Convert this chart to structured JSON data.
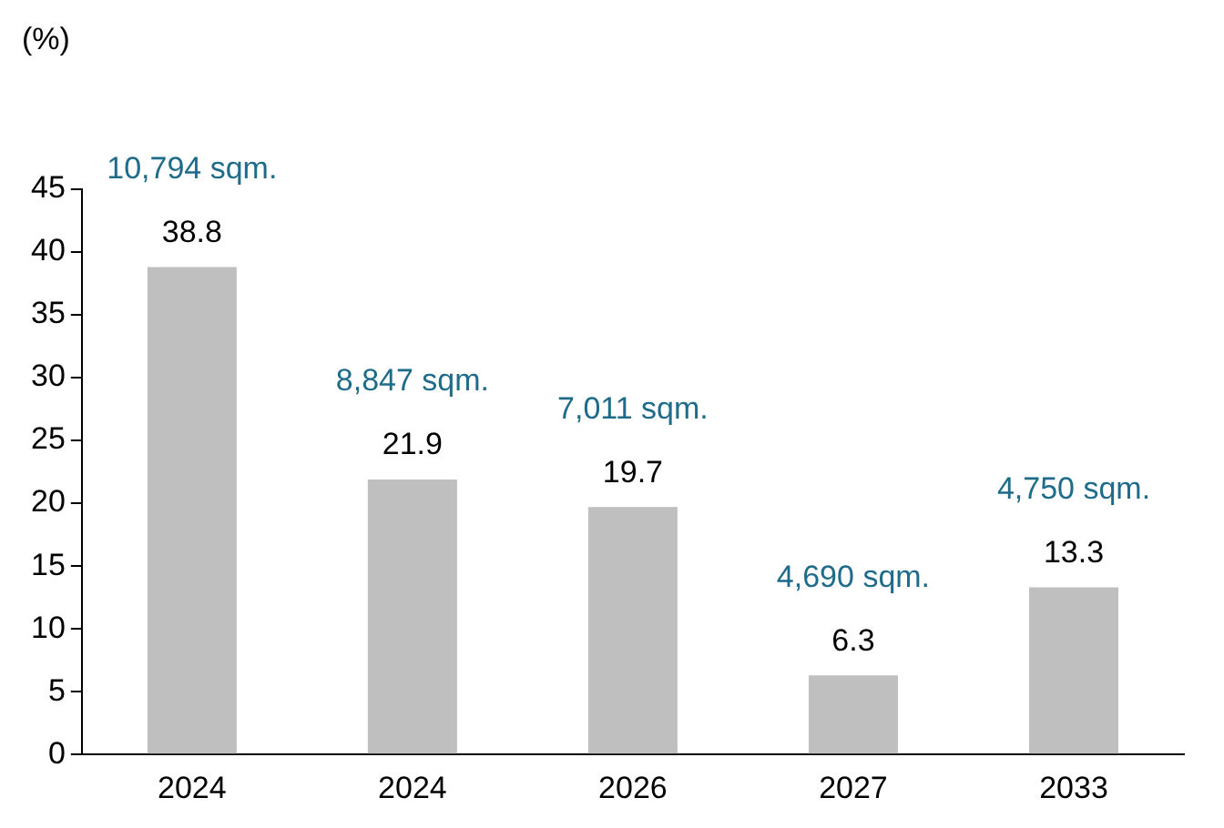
{
  "chart_data": {
    "type": "bar",
    "ylabel": "(%)",
    "categories": [
      "2024",
      "2024",
      "2026",
      "2027",
      "2033"
    ],
    "values": [
      38.8,
      21.9,
      19.7,
      6.3,
      13.3
    ],
    "color": "#bfbfbf",
    "ylim": [
      0,
      45
    ],
    "yticks": [
      0,
      5,
      10,
      15,
      20,
      25,
      30,
      35,
      40,
      45
    ],
    "grid": false,
    "legend": false,
    "data_labels": true,
    "annotations": [
      "10,794 sqm.",
      "8,847 sqm.",
      "7,011 sqm.",
      "4,690 sqm.",
      "4,750 sqm."
    ]
  }
}
